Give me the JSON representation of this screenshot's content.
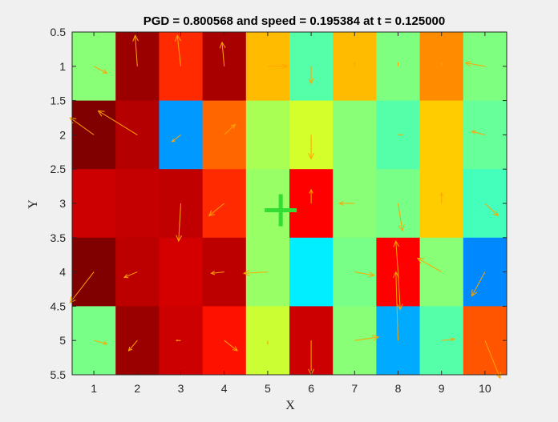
{
  "chart_data": {
    "type": "heatmap",
    "title": "PGD = 0.800568 and speed = 0.195384 at t = 0.125000",
    "xlabel": "X",
    "ylabel": "Y",
    "xlim": [
      0.5,
      10.5
    ],
    "ylim": [
      0.5,
      5.5
    ],
    "y_reversed": true,
    "x_ticks": [
      "1",
      "2",
      "3",
      "4",
      "5",
      "6",
      "7",
      "8",
      "9",
      "10"
    ],
    "y_ticks": [
      "0.5",
      "1",
      "1.5",
      "2",
      "2.5",
      "3",
      "3.5",
      "4",
      "4.5",
      "5",
      "5.5"
    ],
    "grid": false,
    "colormap": "jet",
    "cell_colors": [
      [
        "#88ff77",
        "#9a0000",
        "#ff2a00",
        "#a80000",
        "#ffbb00",
        "#55ffaa",
        "#ffbb00",
        "#7fff7f",
        "#ff8c00",
        "#7fff7f"
      ],
      [
        "#800000",
        "#b40000",
        "#0099ff",
        "#ff6600",
        "#aaff55",
        "#d4ff2b",
        "#88ff77",
        "#55ffaa",
        "#ffcc00",
        "#66ff99"
      ],
      [
        "#cc0000",
        "#c40000",
        "#c00000",
        "#ff2a00",
        "#99ff66",
        "#ff0000",
        "#88ff77",
        "#77ff88",
        "#ffcc00",
        "#44ffbb"
      ],
      [
        "#800000",
        "#bc0000",
        "#d40000",
        "#bc0000",
        "#99ff66",
        "#00eeff",
        "#77ff88",
        "#ff0000",
        "#88ff77",
        "#0088ff"
      ],
      [
        "#77ff88",
        "#9a0000",
        "#cc0000",
        "#ff1100",
        "#ccff33",
        "#cc0000",
        "#88ff77",
        "#00aaff",
        "#55ffaa",
        "#ff5500"
      ]
    ],
    "arrow_color": "#ffa500",
    "arrows": [
      {
        "x": 1,
        "y": 1,
        "dx": 0.3,
        "dy": 0.1
      },
      {
        "x": 2,
        "y": 1,
        "dx": -0.05,
        "dy": -0.45
      },
      {
        "x": 3,
        "y": 1,
        "dx": -0.08,
        "dy": -0.45
      },
      {
        "x": 4,
        "y": 1,
        "dx": -0.05,
        "dy": -0.35
      },
      {
        "x": 5,
        "y": 1,
        "dx": 0.45,
        "dy": 0.0
      },
      {
        "x": 6,
        "y": 1,
        "dx": 0.0,
        "dy": 0.25
      },
      {
        "x": 7,
        "y": 1,
        "dx": 0.0,
        "dy": -0.05
      },
      {
        "x": 8,
        "y": 1,
        "dx": 0.0,
        "dy": -0.05
      },
      {
        "x": 9,
        "y": 1,
        "dx": 0.0,
        "dy": -0.05
      },
      {
        "x": 10,
        "y": 1,
        "dx": -0.45,
        "dy": -0.05
      },
      {
        "x": 1,
        "y": 2,
        "dx": -0.55,
        "dy": -0.25
      },
      {
        "x": 2,
        "y": 2,
        "dx": -0.9,
        "dy": -0.35
      },
      {
        "x": 3,
        "y": 2,
        "dx": -0.2,
        "dy": 0.1
      },
      {
        "x": 4,
        "y": 2,
        "dx": 0.25,
        "dy": -0.15
      },
      {
        "x": 5,
        "y": 2,
        "dx": 0.0,
        "dy": 0.0
      },
      {
        "x": 6,
        "y": 2,
        "dx": 0.0,
        "dy": 0.35
      },
      {
        "x": 7,
        "y": 2,
        "dx": 0.0,
        "dy": 0.0
      },
      {
        "x": 8,
        "y": 2,
        "dx": 0.1,
        "dy": 0.0
      },
      {
        "x": 9,
        "y": 2,
        "dx": 0.0,
        "dy": 0.0
      },
      {
        "x": 10,
        "y": 2,
        "dx": -0.3,
        "dy": -0.05
      },
      {
        "x": 1,
        "y": 3,
        "dx": 0.0,
        "dy": 0.0
      },
      {
        "x": 2,
        "y": 3,
        "dx": 0.0,
        "dy": 0.0
      },
      {
        "x": 3,
        "y": 3,
        "dx": -0.05,
        "dy": 0.55
      },
      {
        "x": 4,
        "y": 3,
        "dx": -0.35,
        "dy": 0.18
      },
      {
        "x": 5,
        "y": 3,
        "dx": 0.0,
        "dy": 0.0
      },
      {
        "x": 6,
        "y": 3,
        "dx": 0.0,
        "dy": -0.2
      },
      {
        "x": 7,
        "y": 3,
        "dx": -0.35,
        "dy": 0.0
      },
      {
        "x": 8,
        "y": 3,
        "dx": 0.1,
        "dy": 0.4
      },
      {
        "x": 9,
        "y": 3,
        "dx": 0.0,
        "dy": -0.15
      },
      {
        "x": 10,
        "y": 3,
        "dx": 0.3,
        "dy": 0.18
      },
      {
        "x": 1,
        "y": 4,
        "dx": -0.55,
        "dy": 0.45
      },
      {
        "x": 2,
        "y": 4,
        "dx": -0.3,
        "dy": 0.08
      },
      {
        "x": 3,
        "y": 4,
        "dx": 0.0,
        "dy": 0.0
      },
      {
        "x": 4,
        "y": 4,
        "dx": -0.3,
        "dy": 0.02
      },
      {
        "x": 5,
        "y": 4,
        "dx": -0.55,
        "dy": 0.02
      },
      {
        "x": 6,
        "y": 4,
        "dx": 0.0,
        "dy": 0.0
      },
      {
        "x": 7,
        "y": 4,
        "dx": 0.45,
        "dy": 0.05
      },
      {
        "x": 8,
        "y": 4,
        "dx": -0.05,
        "dy": -0.45
      },
      {
        "x": 8,
        "y": 4,
        "dx": 0.05,
        "dy": 0.55
      },
      {
        "x": 9,
        "y": 4,
        "dx": -0.55,
        "dy": -0.2
      },
      {
        "x": 10,
        "y": 4,
        "dx": -0.3,
        "dy": 0.35
      },
      {
        "x": 1,
        "y": 5,
        "dx": 0.3,
        "dy": 0.05
      },
      {
        "x": 2,
        "y": 5,
        "dx": -0.2,
        "dy": 0.15
      },
      {
        "x": 3,
        "y": 5,
        "dx": -0.1,
        "dy": 0.0
      },
      {
        "x": 4,
        "y": 5,
        "dx": 0.3,
        "dy": 0.15
      },
      {
        "x": 5,
        "y": 5,
        "dx": 0.0,
        "dy": 0.05
      },
      {
        "x": 6,
        "y": 5,
        "dx": 0.0,
        "dy": 0.5
      },
      {
        "x": 7,
        "y": 5,
        "dx": 0.55,
        "dy": -0.05
      },
      {
        "x": 8,
        "y": 5,
        "dx": -0.05,
        "dy": -1.0
      },
      {
        "x": 9,
        "y": 5,
        "dx": 0.3,
        "dy": -0.02
      },
      {
        "x": 10,
        "y": 5,
        "dx": 0.35,
        "dy": 0.55
      }
    ],
    "marker": {
      "x": 5.3,
      "y": 3.1,
      "shape": "plus",
      "color": "#33dd33"
    }
  }
}
